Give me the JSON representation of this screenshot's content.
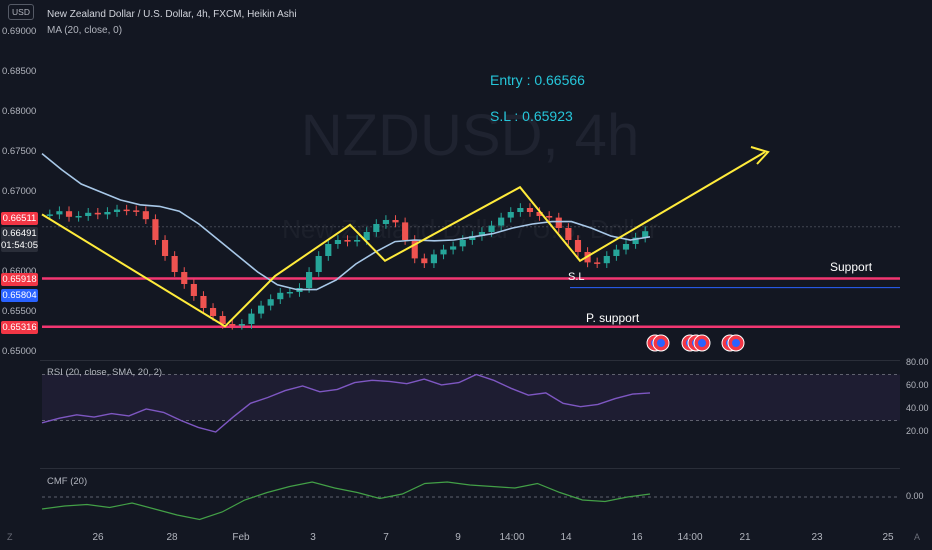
{
  "header": {
    "currency_box": "USD",
    "title": "New Zealand Dollar / U.S. Dollar, 4h, FXCM, Heikin Ashi",
    "ma_label": "MA (20, close, 0)",
    "watermark_symbol": "NZDUSD, 4h",
    "watermark_name": "New Zealand Dollar / U.S. Dollar"
  },
  "price_axis": {
    "labels": [
      "0.69000",
      "0.68500",
      "0.68000",
      "0.67500",
      "0.67000",
      "0.66000",
      "0.65500",
      "0.65000"
    ],
    "tags": [
      {
        "text": "0.66511",
        "color": "#f23645"
      },
      {
        "text": "0.66491",
        "color": "#2a2e39"
      },
      {
        "text": "01:54:05",
        "color": "#2a2e39"
      },
      {
        "text": "0.65918",
        "color": "#f23645"
      },
      {
        "text": "0.65804",
        "color": "#2962ff"
      },
      {
        "text": "0.65316",
        "color": "#f23645"
      }
    ]
  },
  "annotations": {
    "entry": "Entry : 0.66566",
    "sl": "S.L : 0.65923",
    "support": "Support",
    "p_support": "P. support",
    "sl_short": "S.L"
  },
  "rsi": {
    "label": "RSI (20, close, SMA, 20, 2)",
    "axis": [
      "80.00",
      "60.00",
      "40.00",
      "20.00"
    ]
  },
  "cmf": {
    "label": "CMF (20)",
    "axis": [
      "0.00"
    ]
  },
  "time_axis": [
    "26",
    "28",
    "Feb",
    "3",
    "7",
    "9",
    "14:00",
    "14",
    "16",
    "14:00",
    "21",
    "23",
    "25"
  ],
  "footer": {
    "z_btn": "Z",
    "a_btn": "A"
  },
  "chart_data": {
    "type": "line",
    "title": "New Zealand Dollar / U.S. Dollar, 4h, FXCM, Heikin Ashi",
    "ylim": [
      0.65,
      0.6905
    ],
    "levels": {
      "entry": 0.66566,
      "stop_loss": 0.65923,
      "support": 0.65918,
      "p_support": 0.65316,
      "blue_line": 0.65804
    },
    "candles": [
      0.6672,
      0.6676,
      0.6669,
      0.667,
      0.6674,
      0.6672,
      0.6675,
      0.6678,
      0.6677,
      0.6676,
      0.6666,
      0.664,
      0.662,
      0.66,
      0.6585,
      0.657,
      0.6555,
      0.6545,
      0.6535,
      0.6534,
      0.6535,
      0.6548,
      0.6558,
      0.6566,
      0.6574,
      0.6575,
      0.658,
      0.66,
      0.662,
      0.6635,
      0.664,
      0.6638,
      0.664,
      0.665,
      0.666,
      0.6665,
      0.6662,
      0.664,
      0.6617,
      0.6611,
      0.6622,
      0.6628,
      0.6632,
      0.664,
      0.6645,
      0.665,
      0.6658,
      0.6668,
      0.6675,
      0.668,
      0.6675,
      0.667,
      0.6668,
      0.6655,
      0.664,
      0.6625,
      0.6612,
      0.6611,
      0.662,
      0.6628,
      0.6635,
      0.6643,
      0.6651
    ],
    "ma": [
      0.6748,
      0.6728,
      0.671,
      0.67,
      0.669,
      0.6684,
      0.6682,
      0.6676,
      0.666,
      0.664,
      0.662,
      0.66,
      0.6584,
      0.6578,
      0.6578,
      0.659,
      0.661,
      0.6625,
      0.6638,
      0.664,
      0.6639,
      0.664,
      0.6644,
      0.6648,
      0.6655,
      0.666,
      0.6663,
      0.6663,
      0.6655,
      0.6645,
      0.664,
      0.6644
    ],
    "projection": [
      {
        "x": "Jan 24",
        "y": 0.6672
      },
      {
        "x": "Jan 29",
        "y": 0.6532
      },
      {
        "x": "Jan 31",
        "y": 0.6595
      },
      {
        "x": "Feb 3",
        "y": 0.6659
      },
      {
        "x": "Feb 5",
        "y": 0.6614
      },
      {
        "x": "Feb 10",
        "y": 0.6706
      },
      {
        "x": "Feb 14",
        "y": 0.6614
      },
      {
        "x": "Feb 18",
        "y": 0.675
      }
    ],
    "rsi_values": [
      28,
      32,
      35,
      33,
      36,
      34,
      40,
      37,
      30,
      24,
      20,
      33,
      45,
      50,
      56,
      60,
      55,
      57,
      63,
      65,
      64,
      62,
      66,
      61,
      63,
      70,
      65,
      58,
      52,
      54,
      45,
      42,
      44,
      49,
      53,
      54
    ],
    "rsi_band": [
      30,
      70
    ],
    "cmf_values": [
      -0.08,
      -0.06,
      -0.05,
      -0.07,
      -0.04,
      -0.08,
      -0.12,
      -0.15,
      -0.1,
      -0.02,
      0.03,
      0.07,
      0.1,
      0.06,
      0.03,
      -0.01,
      0.02,
      0.09,
      0.1,
      0.08,
      0.07,
      0.06,
      0.09,
      0.03,
      -0.02,
      -0.03,
      0.0,
      0.02
    ]
  }
}
